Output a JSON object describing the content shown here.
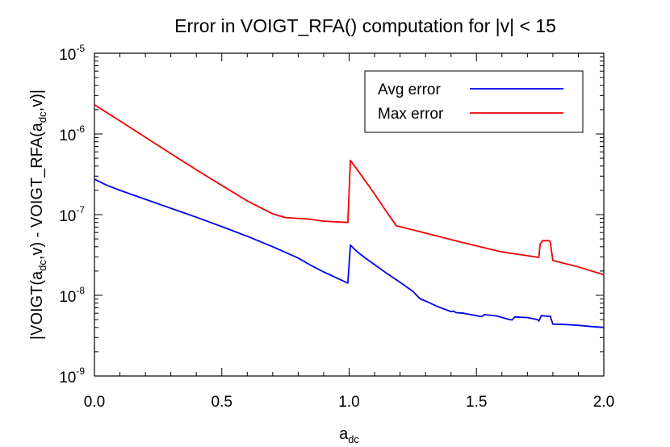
{
  "chart_data": {
    "type": "line",
    "title": "Error in VOIGT_RFA() computation for |v| < 15",
    "xlabel": {
      "main": "a",
      "sub": "dc"
    },
    "ylabel": {
      "parts": [
        "|VOIGT(a",
        "dc",
        ",v) - VOIGT_RFA(a",
        "dc",
        ",v)|"
      ]
    },
    "xlim": [
      0.0,
      2.0
    ],
    "ylim": [
      1e-09,
      1e-05
    ],
    "y_scale": "log",
    "x_ticks": [
      {
        "value": 0.0,
        "label": "0.0"
      },
      {
        "value": 0.5,
        "label": "0.5"
      },
      {
        "value": 1.0,
        "label": "1.0"
      },
      {
        "value": 1.5,
        "label": "1.5"
      },
      {
        "value": 2.0,
        "label": "2.0"
      }
    ],
    "y_ticks": [
      {
        "value": 1e-09,
        "base": "10",
        "exp": "-9"
      },
      {
        "value": 1e-08,
        "base": "10",
        "exp": "-8"
      },
      {
        "value": 1e-07,
        "base": "10",
        "exp": "-7"
      },
      {
        "value": 1e-06,
        "base": "10",
        "exp": "-6"
      },
      {
        "value": 1e-05,
        "base": "10",
        "exp": "-5"
      }
    ],
    "grid": false,
    "legend_position": "top-right",
    "series": [
      {
        "name": "Avg error",
        "color": "#0000ee",
        "points": [
          [
            0.0,
            2.75e-07
          ],
          [
            0.05,
            2.3e-07
          ],
          [
            0.1,
            2e-07
          ],
          [
            0.2,
            1.55e-07
          ],
          [
            0.3,
            1.2e-07
          ],
          [
            0.4,
            9.3e-08
          ],
          [
            0.5,
            7.1e-08
          ],
          [
            0.6,
            5.4e-08
          ],
          [
            0.7,
            4e-08
          ],
          [
            0.8,
            2.9e-08
          ],
          [
            0.85,
            2.35e-08
          ],
          [
            0.9,
            1.95e-08
          ],
          [
            0.95,
            1.65e-08
          ],
          [
            0.995,
            1.42e-08
          ],
          [
            1.005,
            4.2e-08
          ],
          [
            1.03,
            3.5e-08
          ],
          [
            1.06,
            2.95e-08
          ],
          [
            1.1,
            2.4e-08
          ],
          [
            1.15,
            1.85e-08
          ],
          [
            1.2,
            1.45e-08
          ],
          [
            1.25,
            1.12e-08
          ],
          [
            1.28,
            9e-09
          ],
          [
            1.3,
            8.5e-09
          ],
          [
            1.35,
            7.2e-09
          ],
          [
            1.4,
            6.3e-09
          ],
          [
            1.41,
            6.35e-09
          ],
          [
            1.42,
            6.1e-09
          ],
          [
            1.45,
            6e-09
          ],
          [
            1.5,
            5.6e-09
          ],
          [
            1.52,
            5.45e-09
          ],
          [
            1.53,
            5.75e-09
          ],
          [
            1.58,
            5.55e-09
          ],
          [
            1.63,
            5e-09
          ],
          [
            1.64,
            4.95e-09
          ],
          [
            1.65,
            5.4e-09
          ],
          [
            1.7,
            5.3e-09
          ],
          [
            1.74,
            5e-09
          ],
          [
            1.745,
            4.8e-09
          ],
          [
            1.755,
            5.6e-09
          ],
          [
            1.78,
            5.5e-09
          ],
          [
            1.79,
            5.5e-09
          ],
          [
            1.8,
            4.4e-09
          ],
          [
            1.85,
            4.35e-09
          ],
          [
            1.9,
            4.25e-09
          ],
          [
            1.95,
            4.1e-09
          ],
          [
            2.0,
            4e-09
          ]
        ]
      },
      {
        "name": "Max error",
        "color": "#ee0000",
        "points": [
          [
            0.0,
            2.3e-06
          ],
          [
            0.1,
            1.45e-06
          ],
          [
            0.2,
            9.1e-07
          ],
          [
            0.3,
            5.7e-07
          ],
          [
            0.4,
            3.6e-07
          ],
          [
            0.5,
            2.3e-07
          ],
          [
            0.6,
            1.48e-07
          ],
          [
            0.7,
            1.02e-07
          ],
          [
            0.75,
            9.2e-08
          ],
          [
            0.845,
            8.8e-08
          ],
          [
            0.9,
            8.3e-08
          ],
          [
            0.995,
            8e-08
          ],
          [
            1.005,
            4.7e-07
          ],
          [
            1.05,
            3e-07
          ],
          [
            1.1,
            1.8e-07
          ],
          [
            1.15,
            1.05e-07
          ],
          [
            1.185,
            7.3e-08
          ],
          [
            1.3,
            5.9e-08
          ],
          [
            1.4,
            4.9e-08
          ],
          [
            1.5,
            4.1e-08
          ],
          [
            1.6,
            3.45e-08
          ],
          [
            1.7,
            3.1e-08
          ],
          [
            1.745,
            2.95e-08
          ],
          [
            1.75,
            4.3e-08
          ],
          [
            1.76,
            4.75e-08
          ],
          [
            1.785,
            4.75e-08
          ],
          [
            1.79,
            4.55e-08
          ],
          [
            1.8,
            2.7e-08
          ],
          [
            1.9,
            2.25e-08
          ],
          [
            2.0,
            1.8e-08
          ]
        ]
      }
    ]
  }
}
